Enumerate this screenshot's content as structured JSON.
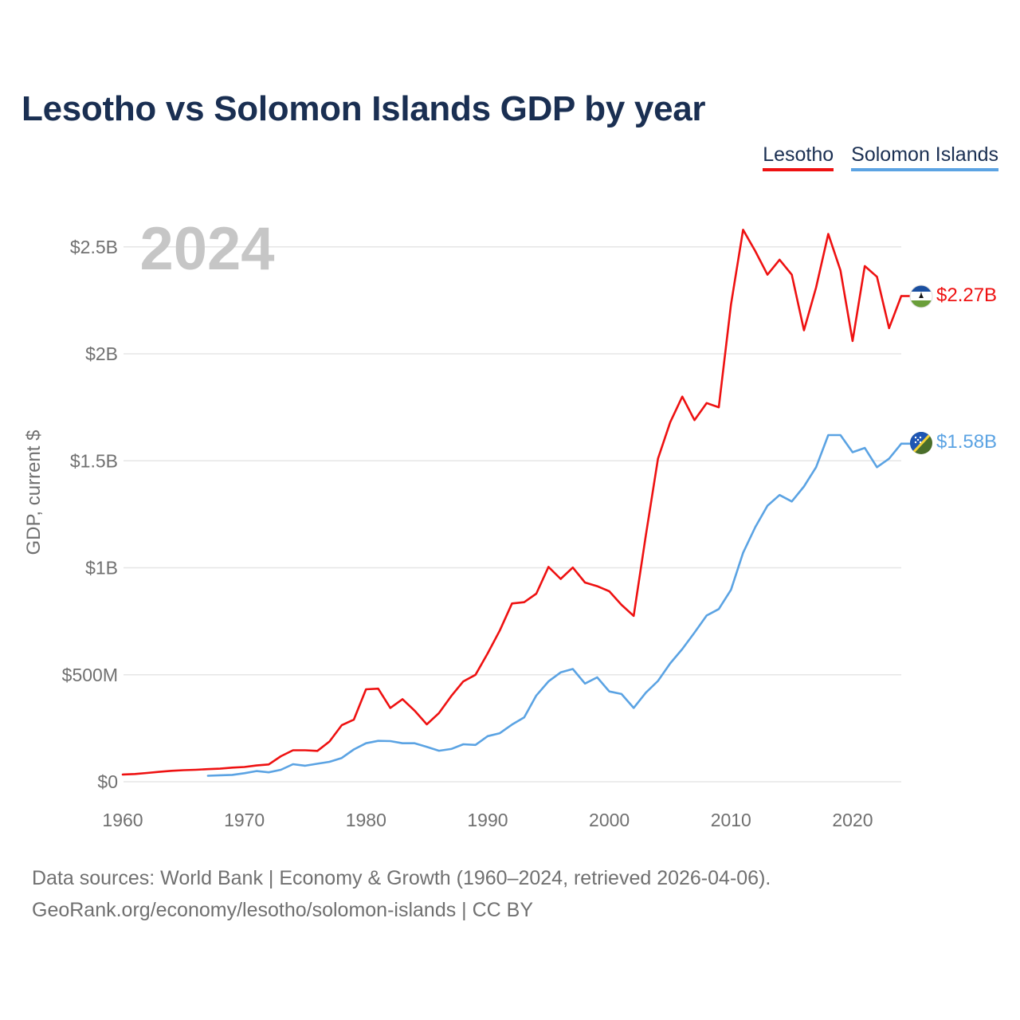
{
  "title": "Lesotho vs Solomon Islands GDP by year",
  "legend": [
    {
      "name": "Lesotho",
      "color": "#ee1111"
    },
    {
      "name": "Solomon Islands",
      "color": "#5ba3e3"
    }
  ],
  "footer": {
    "line1": "Data sources: World Bank | Economy & Growth (1960–2024, retrieved 2026-04-06).",
    "line2": "GeoRank.org/economy/lesotho/solomon-islands | CC BY"
  },
  "chart_data": {
    "type": "line",
    "title": "Lesotho vs Solomon Islands GDP by year",
    "ylabel": "GDP, current $",
    "xlabel": "",
    "year_watermark": "2024",
    "xlim": [
      1960,
      2024
    ],
    "ylim": [
      0,
      2650000000
    ],
    "x_ticks": [
      1960,
      1970,
      1980,
      1990,
      2000,
      2010,
      2020
    ],
    "x_tick_labels": [
      "1960",
      "1970",
      "1980",
      "1990",
      "2000",
      "2010",
      "2020"
    ],
    "y_ticks": [
      0,
      500000000,
      1000000000,
      1500000000,
      2000000000,
      2500000000
    ],
    "y_tick_labels": [
      "$0",
      "$500M",
      "$1B",
      "$1.5B",
      "$2B",
      "$2.5B"
    ],
    "grid": true,
    "legend_position": "top-right",
    "series": [
      {
        "name": "Lesotho",
        "color": "#ee1111",
        "end_label": "$2.27B",
        "flag": "lesotho",
        "x": [
          1960,
          1961,
          1962,
          1963,
          1964,
          1965,
          1966,
          1967,
          1968,
          1969,
          1970,
          1971,
          1972,
          1973,
          1974,
          1975,
          1976,
          1977,
          1978,
          1979,
          1980,
          1981,
          1982,
          1983,
          1984,
          1985,
          1986,
          1987,
          1988,
          1989,
          1990,
          1991,
          1992,
          1993,
          1994,
          1995,
          1996,
          1997,
          1998,
          1999,
          2000,
          2001,
          2002,
          2003,
          2004,
          2005,
          2006,
          2007,
          2008,
          2009,
          2010,
          2011,
          2012,
          2013,
          2014,
          2015,
          2016,
          2017,
          2018,
          2019,
          2020,
          2021,
          2022,
          2023,
          2024
        ],
        "values": [
          34000000,
          36000000,
          41000000,
          46000000,
          51000000,
          54000000,
          56000000,
          59000000,
          61000000,
          66000000,
          69000000,
          76000000,
          81000000,
          119000000,
          147000000,
          147000000,
          144000000,
          188000000,
          264000000,
          290000000,
          432000000,
          435000000,
          345000000,
          386000000,
          332000000,
          268000000,
          321000000,
          400000000,
          469000000,
          500000000,
          600000000,
          707000000,
          833000000,
          839000000,
          879000000,
          1004000000,
          948000000,
          1001000000,
          931000000,
          914000000,
          890000000,
          827000000,
          775000000,
          1150000000,
          1510000000,
          1680000000,
          1800000000,
          1690000000,
          1770000000,
          1750000000,
          2230000000,
          2580000000,
          2480000000,
          2370000000,
          2440000000,
          2370000000,
          2110000000,
          2310000000,
          2560000000,
          2390000000,
          2060000000,
          2410000000,
          2360000000,
          2120000000,
          2270000000
        ]
      },
      {
        "name": "Solomon Islands",
        "color": "#5ba3e3",
        "end_label": "$1.58B",
        "flag": "solomon-islands",
        "x": [
          1967,
          1968,
          1969,
          1970,
          1971,
          1972,
          1973,
          1974,
          1975,
          1976,
          1977,
          1978,
          1979,
          1980,
          1981,
          1982,
          1983,
          1984,
          1985,
          1986,
          1987,
          1988,
          1989,
          1990,
          1991,
          1992,
          1993,
          1994,
          1995,
          1996,
          1997,
          1998,
          1999,
          2000,
          2001,
          2002,
          2003,
          2004,
          2005,
          2006,
          2007,
          2008,
          2009,
          2010,
          2011,
          2012,
          2013,
          2014,
          2015,
          2016,
          2017,
          2018,
          2019,
          2020,
          2021,
          2022,
          2023,
          2024
        ],
        "values": [
          28000000,
          30000000,
          32000000,
          40000000,
          50000000,
          44000000,
          56000000,
          82000000,
          75000000,
          84000000,
          93000000,
          111000000,
          151000000,
          180000000,
          191000000,
          190000000,
          180000000,
          180000000,
          163000000,
          145000000,
          153000000,
          175000000,
          172000000,
          213000000,
          227000000,
          267000000,
          301000000,
          403000000,
          469000000,
          511000000,
          527000000,
          459000000,
          488000000,
          422000000,
          410000000,
          345000000,
          416000000,
          471000000,
          553000000,
          620000000,
          697000000,
          777000000,
          807000000,
          897000000,
          1070000000,
          1190000000,
          1290000000,
          1340000000,
          1310000000,
          1380000000,
          1470000000,
          1620000000,
          1620000000,
          1540000000,
          1560000000,
          1470000000,
          1510000000,
          1580000000
        ]
      }
    ]
  }
}
